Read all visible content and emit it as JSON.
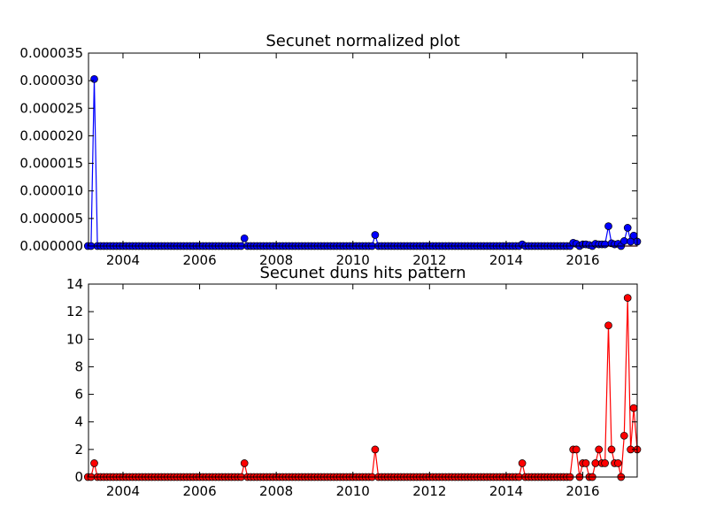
{
  "chart_data": [
    {
      "type": "line",
      "title": "Secunet normalized plot",
      "xlabel": "",
      "ylabel": "",
      "xlim": [
        2003.1,
        2017.42
      ],
      "ylim": [
        0,
        3.5e-05
      ],
      "x_ticks": [
        "2004",
        "2006",
        "2008",
        "2010",
        "2012",
        "2014",
        "2016"
      ],
      "y_ticks": [
        "0.000000",
        "0.000005",
        "0.000010",
        "0.000015",
        "0.000020",
        "0.000025",
        "0.000030",
        "0.000035"
      ],
      "grid": false,
      "legend": "none",
      "colors": {
        "line": "#0000ff",
        "marker": "#0000ff",
        "reference_line": "#ff0000"
      },
      "reference_line_y": 0,
      "series": [
        {
          "x": [
            2003.25,
            2007.17,
            2010.58,
            2014.42,
            2015.75,
            2015.83,
            2016.0,
            2016.08,
            2016.17,
            2016.33,
            2016.42,
            2016.5,
            2016.58,
            2016.67,
            2016.75,
            2016.83,
            2016.92,
            2017.0,
            2017.08,
            2017.17,
            2017.25,
            2017.33,
            2017.42
          ],
          "y": [
            3.03e-05,
            1.4e-06,
            2e-06,
            3e-07,
            6e-07,
            4e-07,
            3e-07,
            3e-07,
            2e-07,
            4e-07,
            3e-07,
            3e-07,
            3e-07,
            3.6e-06,
            5e-07,
            3e-07,
            4e-07,
            0.0,
            9e-07,
            3.3e-06,
            8e-07,
            1.9e-06,
            8e-07
          ]
        }
      ]
    },
    {
      "type": "line",
      "title": "Secunet duns hits pattern",
      "xlabel": "",
      "ylabel": "",
      "xlim": [
        2003.1,
        2017.42
      ],
      "ylim": [
        0,
        14
      ],
      "x_ticks": [
        "2004",
        "2006",
        "2008",
        "2010",
        "2012",
        "2014",
        "2016"
      ],
      "y_ticks": [
        "0",
        "2",
        "4",
        "6",
        "8",
        "10",
        "12",
        "14"
      ],
      "grid": false,
      "legend": "none",
      "colors": {
        "line": "#ff0000",
        "marker": "#ff0000"
      },
      "series": [
        {
          "x": [
            2003.25,
            2007.17,
            2010.58,
            2014.42,
            2015.75,
            2015.83,
            2016.0,
            2016.08,
            2016.17,
            2016.33,
            2016.42,
            2016.5,
            2016.58,
            2016.67,
            2016.75,
            2016.83,
            2016.92,
            2017.0,
            2017.08,
            2017.17,
            2017.25,
            2017.33,
            2017.42
          ],
          "y": [
            1,
            1,
            2,
            1,
            2,
            2,
            1,
            1,
            0,
            1,
            2,
            1,
            1,
            11,
            2,
            1,
            1,
            0,
            3,
            13,
            2,
            5,
            2
          ]
        }
      ]
    }
  ]
}
